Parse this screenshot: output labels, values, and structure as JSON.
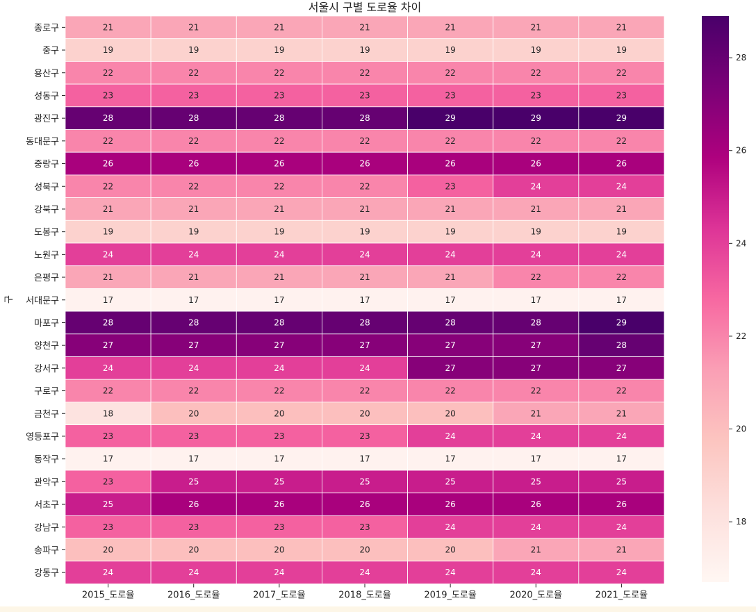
{
  "chart_data": {
    "type": "heatmap",
    "title": "서울시 구별 도로율 차이",
    "ylabel": "구",
    "xlabel": "",
    "columns": [
      "2015_도로율",
      "2016_도로율",
      "2017_도로율",
      "2018_도로율",
      "2019_도로율",
      "2020_도로율",
      "2021_도로율"
    ],
    "rows": [
      "종로구",
      "중구",
      "용산구",
      "성동구",
      "광진구",
      "동대문구",
      "중랑구",
      "성북구",
      "강북구",
      "도봉구",
      "노원구",
      "은평구",
      "서대문구",
      "마포구",
      "양천구",
      "강서구",
      "구로구",
      "금천구",
      "영등포구",
      "동작구",
      "관악구",
      "서초구",
      "강남구",
      "송파구",
      "강동구"
    ],
    "values": [
      [
        21,
        21,
        21,
        21,
        21,
        21,
        21
      ],
      [
        19,
        19,
        19,
        19,
        19,
        19,
        19
      ],
      [
        22,
        22,
        22,
        22,
        22,
        22,
        22
      ],
      [
        23,
        23,
        23,
        23,
        23,
        23,
        23
      ],
      [
        28,
        28,
        28,
        28,
        29,
        29,
        29
      ],
      [
        22,
        22,
        22,
        22,
        22,
        22,
        22
      ],
      [
        26,
        26,
        26,
        26,
        26,
        26,
        26
      ],
      [
        22,
        22,
        22,
        22,
        23,
        24,
        24
      ],
      [
        21,
        21,
        21,
        21,
        21,
        21,
        21
      ],
      [
        19,
        19,
        19,
        19,
        19,
        19,
        19
      ],
      [
        24,
        24,
        24,
        24,
        24,
        24,
        24
      ],
      [
        21,
        21,
        21,
        21,
        21,
        22,
        22
      ],
      [
        17,
        17,
        17,
        17,
        17,
        17,
        17
      ],
      [
        28,
        28,
        28,
        28,
        28,
        28,
        29
      ],
      [
        27,
        27,
        27,
        27,
        27,
        27,
        28
      ],
      [
        24,
        24,
        24,
        24,
        27,
        27,
        27
      ],
      [
        22,
        22,
        22,
        22,
        22,
        22,
        22
      ],
      [
        18,
        20,
        20,
        20,
        20,
        21,
        21
      ],
      [
        23,
        23,
        23,
        23,
        24,
        24,
        24
      ],
      [
        17,
        17,
        17,
        17,
        17,
        17,
        17
      ],
      [
        23,
        25,
        25,
        25,
        25,
        25,
        25
      ],
      [
        25,
        26,
        26,
        26,
        26,
        26,
        26
      ],
      [
        23,
        23,
        23,
        23,
        24,
        24,
        24
      ],
      [
        20,
        20,
        20,
        20,
        20,
        21,
        21
      ],
      [
        24,
        24,
        24,
        24,
        24,
        24,
        24
      ]
    ],
    "colormap": "RdPu",
    "colormap_stops": [
      "#fff7f3",
      "#fde0dd",
      "#fcc5c0",
      "#fa9fb5",
      "#f768a1",
      "#dd3497",
      "#ae017e",
      "#7a0177",
      "#49006a"
    ],
    "vmin": 16.7,
    "vmax": 28.9,
    "colorbar_ticks": [
      18,
      20,
      22,
      24,
      26,
      28
    ],
    "annotate": true,
    "grid_line_color": "#ffffff"
  }
}
